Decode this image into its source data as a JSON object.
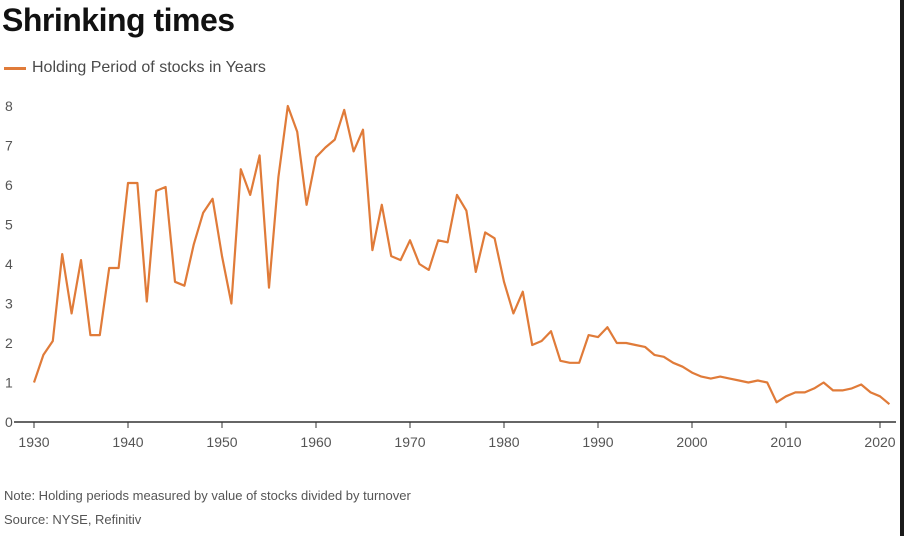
{
  "title": "Shrinking times",
  "legend": {
    "label": "Holding Period of stocks in Years",
    "color": "#e07b39"
  },
  "note": "Note: Holding periods measured by value of stocks divided by turnover",
  "source": "Source: NYSE, Refinitiv",
  "chart_data": {
    "type": "line",
    "title": "Shrinking times",
    "xlabel": "",
    "ylabel": "",
    "xlim": [
      1930,
      2021
    ],
    "ylim": [
      0,
      8
    ],
    "xticks": [
      1930,
      1940,
      1950,
      1960,
      1970,
      1980,
      1990,
      2000,
      2010,
      2020
    ],
    "yticks": [
      0,
      1,
      2,
      3,
      4,
      5,
      6,
      7,
      8
    ],
    "grid": false,
    "legend_position": "top-left",
    "series": [
      {
        "name": "Holding Period of stocks in Years",
        "color": "#e07b39",
        "x": [
          1930,
          1931,
          1932,
          1933,
          1934,
          1935,
          1936,
          1937,
          1938,
          1939,
          1940,
          1941,
          1942,
          1943,
          1944,
          1945,
          1946,
          1947,
          1948,
          1949,
          1950,
          1951,
          1952,
          1953,
          1954,
          1955,
          1956,
          1957,
          1958,
          1959,
          1960,
          1961,
          1962,
          1963,
          1964,
          1965,
          1966,
          1967,
          1968,
          1969,
          1970,
          1971,
          1972,
          1973,
          1974,
          1975,
          1976,
          1977,
          1978,
          1979,
          1980,
          1981,
          1982,
          1983,
          1984,
          1985,
          1986,
          1987,
          1988,
          1989,
          1990,
          1991,
          1992,
          1993,
          1994,
          1995,
          1996,
          1997,
          1998,
          1999,
          2000,
          2001,
          2002,
          2003,
          2004,
          2005,
          2006,
          2007,
          2008,
          2009,
          2010,
          2011,
          2012,
          2013,
          2014,
          2015,
          2016,
          2017,
          2018,
          2019,
          2020,
          2021
        ],
        "y": [
          1.0,
          1.7,
          2.05,
          4.25,
          2.75,
          4.1,
          2.2,
          2.2,
          3.9,
          3.9,
          6.05,
          6.05,
          3.05,
          5.85,
          5.95,
          3.55,
          3.45,
          4.5,
          5.3,
          5.65,
          4.2,
          3.0,
          6.4,
          5.75,
          6.75,
          3.4,
          6.2,
          8.0,
          7.35,
          5.5,
          6.7,
          6.95,
          7.15,
          7.9,
          6.85,
          7.4,
          4.35,
          5.5,
          4.2,
          4.1,
          4.6,
          4.0,
          3.85,
          4.6,
          4.55,
          5.75,
          5.35,
          3.8,
          4.8,
          4.65,
          3.55,
          2.75,
          3.3,
          1.95,
          2.05,
          2.3,
          1.55,
          1.5,
          1.5,
          2.2,
          2.15,
          2.4,
          2.0,
          2.0,
          1.95,
          1.9,
          1.7,
          1.65,
          1.5,
          1.4,
          1.25,
          1.15,
          1.1,
          1.15,
          1.1,
          1.05,
          1.0,
          1.05,
          1.0,
          0.5,
          0.65,
          0.75,
          0.75,
          0.85,
          1.0,
          0.8,
          0.8,
          0.85,
          0.95,
          0.75,
          0.65,
          0.45
        ]
      }
    ]
  }
}
